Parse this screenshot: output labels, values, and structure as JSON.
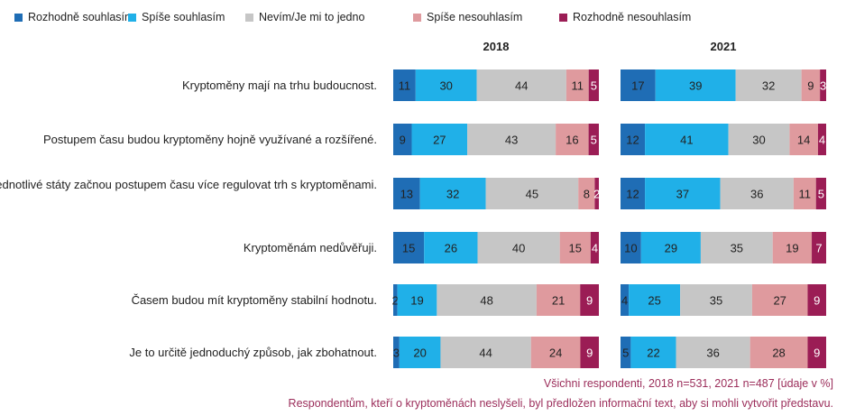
{
  "chart_data": {
    "type": "bar",
    "orientation": "horizontal-stacked-100",
    "series": [
      {
        "name": "Rozhodně souhlasím",
        "color": "#1f6db5"
      },
      {
        "name": "Spíše souhlasím",
        "color": "#20b0e8"
      },
      {
        "name": "Nevím/Je mi to jedno",
        "color": "#c6c6c6"
      },
      {
        "name": "Spíše nesouhlasím",
        "color": "#df9a9e"
      },
      {
        "name": "Rozhodně nesouhlasím",
        "color": "#9b1d55"
      }
    ],
    "groups": [
      "2018",
      "2021"
    ],
    "categories": [
      "Kryptoměny mají na trhu budoucnost.",
      "Postupem času budou kryptoměny hojně využívané a rozšířené.",
      "Jednotlivé státy začnou postupem času více regulovat trh s kryptoměnami.",
      "Kryptoměnám nedůvěřuji.",
      "Časem budou mít kryptoměny stabilní hodnotu.",
      "Je to určitě jednoduchý způsob, jak zbohatnout."
    ],
    "values": {
      "2018": [
        [
          11,
          30,
          44,
          11,
          5
        ],
        [
          9,
          27,
          43,
          16,
          5
        ],
        [
          13,
          32,
          45,
          8,
          2
        ],
        [
          15,
          26,
          40,
          15,
          4
        ],
        [
          2,
          19,
          48,
          21,
          9
        ],
        [
          3,
          20,
          44,
          24,
          9
        ]
      ],
      "2021": [
        [
          17,
          39,
          32,
          9,
          3
        ],
        [
          12,
          41,
          30,
          14,
          4
        ],
        [
          12,
          37,
          36,
          11,
          5
        ],
        [
          10,
          29,
          35,
          19,
          7
        ],
        [
          4,
          25,
          35,
          27,
          9
        ],
        [
          5,
          22,
          36,
          28,
          9
        ]
      ]
    },
    "legend_position": "top"
  },
  "notes": {
    "line1": "Všichni respondenti, 2018 n=531, 2021 n=487 [údaje v %]",
    "line2": "Respondentům, kteří o kryptoměnách neslyšeli, byl předložen informační text, aby si mohli vytvořit představu."
  }
}
